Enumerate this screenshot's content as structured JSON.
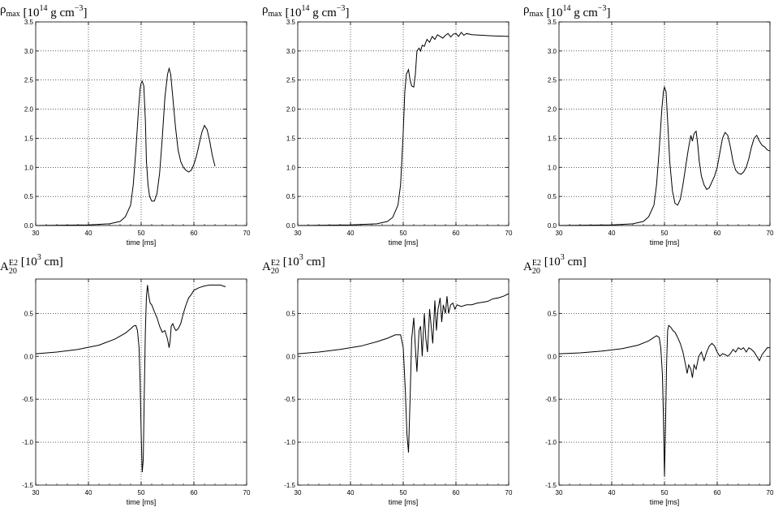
{
  "chart_data": [
    {
      "type": "line",
      "ylabel": {
        "main": "ρ",
        "sub": "max",
        "rest": " [10",
        "exp": "14",
        "rest2": " g cm",
        "exp2": "−3",
        "close": "]"
      },
      "xlabel": "time [ms]",
      "xlim": [
        30,
        70
      ],
      "ylim": [
        0,
        3.5
      ],
      "xticks": [
        "30",
        "40",
        "50",
        "60",
        "70"
      ],
      "yticks": [
        "0.0",
        "0.5",
        "1.0",
        "1.5",
        "2.0",
        "2.5",
        "3.0",
        "3.5"
      ],
      "series": [
        {
          "x": [
            30,
            40,
            44,
            46,
            47,
            48,
            48.5,
            49,
            49.5,
            49.8,
            50,
            50.2,
            50.5,
            50.8,
            51,
            51.3,
            51.6,
            52,
            52.5,
            53,
            53.5,
            54,
            54.5,
            55,
            55.3,
            55.6,
            56,
            56.5,
            57,
            57.5,
            58,
            58.5,
            59,
            59.5,
            60,
            60.5,
            61,
            61.5,
            62,
            62.5,
            63,
            63.5,
            64
          ],
          "y": [
            0,
            0.01,
            0.03,
            0.07,
            0.15,
            0.35,
            0.7,
            1.3,
            2.0,
            2.35,
            2.45,
            2.48,
            2.4,
            1.8,
            1.1,
            0.7,
            0.5,
            0.42,
            0.42,
            0.55,
            0.9,
            1.5,
            2.2,
            2.6,
            2.7,
            2.6,
            2.2,
            1.7,
            1.3,
            1.1,
            1.0,
            0.95,
            0.92,
            0.95,
            1.05,
            1.2,
            1.4,
            1.6,
            1.72,
            1.65,
            1.45,
            1.2,
            1.02
          ]
        }
      ]
    },
    {
      "type": "line",
      "ylabel": {
        "main": "ρ",
        "sub": "max",
        "rest": " [10",
        "exp": "14",
        "rest2": " g cm",
        "exp2": "−3",
        "close": "]"
      },
      "xlabel": "time [ms]",
      "xlim": [
        30,
        70
      ],
      "ylim": [
        0,
        3.5
      ],
      "xticks": [
        "30",
        "40",
        "50",
        "60",
        "70"
      ],
      "yticks": [
        "0.0",
        "0.5",
        "1.0",
        "1.5",
        "2.0",
        "2.5",
        "3.0",
        "3.5"
      ],
      "series": [
        {
          "x": [
            30,
            40,
            45,
            47,
            48,
            49,
            49.5,
            50,
            50.3,
            50.6,
            51,
            51.3,
            51.6,
            52,
            52.3,
            52.6,
            53,
            53.3,
            53.6,
            54,
            54.5,
            55,
            55.5,
            56,
            56.5,
            57,
            57.5,
            58,
            58.5,
            59,
            59.5,
            60,
            60.5,
            61,
            61.5,
            62,
            63,
            65,
            67,
            70
          ],
          "y": [
            0,
            0.01,
            0.03,
            0.07,
            0.14,
            0.35,
            0.7,
            1.6,
            2.3,
            2.6,
            2.68,
            2.5,
            2.4,
            2.38,
            2.6,
            3.0,
            3.05,
            3.0,
            3.1,
            3.08,
            3.2,
            3.15,
            3.25,
            3.2,
            3.28,
            3.25,
            3.22,
            3.27,
            3.3,
            3.24,
            3.29,
            3.3,
            3.25,
            3.32,
            3.27,
            3.3,
            3.28,
            3.27,
            3.26,
            3.25
          ]
        }
      ]
    },
    {
      "type": "line",
      "ylabel": {
        "main": "ρ",
        "sub": "max",
        "rest": " [10",
        "exp": "14",
        "rest2": " g cm",
        "exp2": "−3",
        "close": "]"
      },
      "xlabel": "time [ms]",
      "xlim": [
        30,
        70
      ],
      "ylim": [
        0,
        3.5
      ],
      "xticks": [
        "30",
        "40",
        "50",
        "60",
        "70"
      ],
      "yticks": [
        "0.0",
        "0.5",
        "1.0",
        "1.5",
        "2.0",
        "2.5",
        "3.0",
        "3.5"
      ],
      "series": [
        {
          "x": [
            30,
            40,
            44,
            46,
            47,
            48,
            48.5,
            49,
            49.5,
            49.8,
            50,
            50.3,
            50.6,
            51,
            51.5,
            52,
            52.5,
            53,
            53.5,
            54,
            54.5,
            55,
            55.3,
            55.6,
            56,
            56.3,
            56.6,
            57,
            57.5,
            58,
            58.5,
            59,
            59.5,
            60,
            60.5,
            61,
            61.5,
            62,
            62.5,
            63,
            63.5,
            64,
            64.5,
            65,
            65.5,
            66,
            66.5,
            67,
            67.5,
            68,
            68.5,
            69,
            69.5,
            70
          ],
          "y": [
            0,
            0.01,
            0.03,
            0.07,
            0.15,
            0.35,
            0.7,
            1.3,
            2.0,
            2.3,
            2.38,
            2.3,
            1.8,
            1.1,
            0.6,
            0.38,
            0.35,
            0.45,
            0.7,
            1.0,
            1.3,
            1.55,
            1.45,
            1.58,
            1.62,
            1.4,
            1.1,
            0.85,
            0.7,
            0.62,
            0.65,
            0.75,
            0.85,
            1.0,
            1.25,
            1.5,
            1.6,
            1.55,
            1.35,
            1.1,
            0.95,
            0.9,
            0.88,
            0.92,
            1.0,
            1.15,
            1.35,
            1.5,
            1.55,
            1.45,
            1.38,
            1.35,
            1.3,
            1.28
          ]
        }
      ]
    },
    {
      "type": "line",
      "ylabel": {
        "main": "A",
        "sub": "20",
        "sup": "E2",
        "rest": " [10",
        "exp": "3",
        "rest2": " cm",
        "exp2": "",
        "close": "]"
      },
      "xlabel": "time [ms]",
      "xlim": [
        30,
        70
      ],
      "ylim": [
        -1.5,
        0.9
      ],
      "xticks": [
        "30",
        "40",
        "50",
        "60",
        "70"
      ],
      "yticks": [
        "-1.5",
        "-1.0",
        "-0.5",
        "0.0",
        "0.5"
      ],
      "ytick_values": [
        -1.5,
        -1.0,
        -0.5,
        0.0,
        0.5
      ],
      "series": [
        {
          "x": [
            30,
            34,
            38,
            42,
            45,
            47,
            48,
            48.5,
            49,
            49.3,
            49.6,
            49.8,
            50,
            50.2,
            50.4,
            50.6,
            50.8,
            51,
            51.2,
            51.4,
            51.7,
            52,
            52.5,
            53,
            53.5,
            54,
            54.5,
            55,
            55.3,
            55.5,
            55.7,
            56,
            56.3,
            56.6,
            57,
            57.5,
            58,
            58.5,
            59,
            59.5,
            60,
            61,
            62,
            63,
            64,
            65,
            66
          ],
          "y": [
            0.03,
            0.05,
            0.08,
            0.13,
            0.2,
            0.27,
            0.32,
            0.35,
            0.36,
            0.3,
            0.1,
            -0.3,
            -0.9,
            -1.35,
            -1.2,
            -0.4,
            0.3,
            0.7,
            0.83,
            0.72,
            0.62,
            0.6,
            0.52,
            0.45,
            0.35,
            0.28,
            0.3,
            0.2,
            0.1,
            0.18,
            0.35,
            0.38,
            0.33,
            0.3,
            0.32,
            0.38,
            0.5,
            0.6,
            0.68,
            0.72,
            0.77,
            0.8,
            0.82,
            0.83,
            0.83,
            0.83,
            0.81
          ]
        }
      ]
    },
    {
      "type": "line",
      "ylabel": {
        "main": "A",
        "sub": "20",
        "sup": "E2",
        "rest": " [10",
        "exp": "3",
        "rest2": " cm",
        "exp2": "",
        "close": "]"
      },
      "xlabel": "time [ms]",
      "xlim": [
        30,
        70
      ],
      "ylim": [
        -1.5,
        0.9
      ],
      "xticks": [
        "30",
        "40",
        "50",
        "60",
        "70"
      ],
      "yticks": [
        "-1.5",
        "-1.0",
        "-0.5",
        "0.0",
        "0.5"
      ],
      "ytick_values": [
        -1.5,
        -1.0,
        -0.5,
        0.0,
        0.5
      ],
      "series": [
        {
          "x": [
            30,
            34,
            38,
            42,
            45,
            47,
            48.5,
            49.5,
            50,
            50.4,
            50.7,
            51,
            51.3,
            51.6,
            52,
            52.3,
            52.6,
            53,
            53.3,
            53.6,
            54,
            54.3,
            54.6,
            55,
            55.3,
            55.6,
            56,
            56.3,
            56.6,
            57,
            57.3,
            57.6,
            58,
            58.3,
            58.6,
            59,
            59.4,
            59.8,
            60.2,
            61,
            62,
            63,
            64,
            65,
            66,
            67,
            68,
            69,
            70
          ],
          "y": [
            0.03,
            0.05,
            0.08,
            0.12,
            0.17,
            0.21,
            0.25,
            0.25,
            0.1,
            -0.4,
            -0.9,
            -1.12,
            -0.5,
            0.2,
            0.45,
            0.1,
            -0.18,
            0.3,
            0.35,
            0.0,
            0.5,
            0.2,
            0.05,
            0.55,
            0.35,
            0.15,
            0.65,
            0.3,
            0.55,
            0.68,
            0.4,
            0.6,
            0.5,
            0.7,
            0.5,
            0.6,
            0.62,
            0.55,
            0.6,
            0.58,
            0.6,
            0.6,
            0.62,
            0.63,
            0.64,
            0.67,
            0.68,
            0.7,
            0.73
          ]
        }
      ]
    },
    {
      "type": "line",
      "ylabel": {
        "main": "A",
        "sub": "20",
        "sup": "E2",
        "rest": " [10",
        "exp": "3",
        "rest2": " cm",
        "exp2": "",
        "close": "]"
      },
      "xlabel": "time [ms]",
      "xlim": [
        30,
        70
      ],
      "ylim": [
        -1.5,
        0.9
      ],
      "xticks": [
        "30",
        "40",
        "50",
        "60",
        "70"
      ],
      "yticks": [
        "-1.5",
        "-1.0",
        "-0.5",
        "0.0",
        "0.5"
      ],
      "ytick_values": [
        -1.5,
        -1.0,
        -0.5,
        0.0,
        0.5
      ],
      "series": [
        {
          "x": [
            30,
            34,
            38,
            42,
            45,
            47,
            48,
            48.5,
            49,
            49.3,
            49.6,
            49.8,
            50,
            50.2,
            50.4,
            50.6,
            50.8,
            51,
            51.3,
            51.6,
            52,
            52.5,
            53,
            53.5,
            54,
            54.3,
            54.6,
            55,
            55.3,
            55.6,
            56,
            56.5,
            57,
            57.5,
            58,
            58.5,
            59,
            59.5,
            60,
            60.5,
            61,
            61.5,
            62,
            62.5,
            63,
            63.5,
            64,
            64.5,
            65,
            65.5,
            66,
            66.5,
            67,
            67.5,
            68,
            68.5,
            69,
            69.5,
            70
          ],
          "y": [
            0.03,
            0.04,
            0.06,
            0.09,
            0.13,
            0.18,
            0.22,
            0.24,
            0.22,
            0.1,
            -0.2,
            -0.7,
            -1.4,
            -0.8,
            -0.1,
            0.3,
            0.36,
            0.35,
            0.33,
            0.3,
            0.28,
            0.22,
            0.15,
            0.05,
            -0.1,
            -0.2,
            -0.1,
            -0.15,
            -0.25,
            -0.1,
            -0.15,
            0.0,
            0.05,
            -0.05,
            0.05,
            0.12,
            0.15,
            0.12,
            0.05,
            0.0,
            0.03,
            0.02,
            0.0,
            0.03,
            0.08,
            0.05,
            0.1,
            0.08,
            0.1,
            0.05,
            0.1,
            0.08,
            0.05,
            0.0,
            -0.05,
            0.02,
            0.06,
            0.1,
            0.1
          ]
        }
      ]
    }
  ]
}
